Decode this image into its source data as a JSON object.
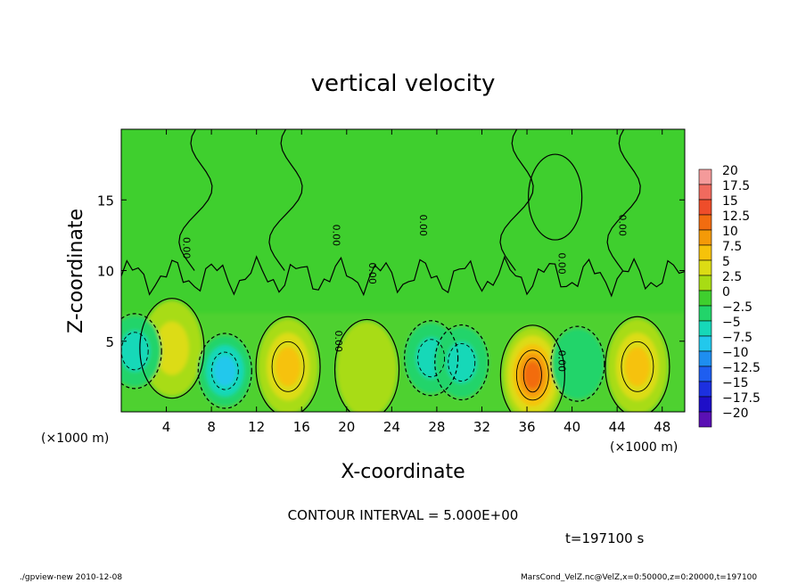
{
  "chart_data": {
    "type": "heatmap",
    "title": "vertical velocity",
    "xlabel": "X-coordinate",
    "ylabel": "Z-coordinate",
    "x_unit_left": "(×1000 m)",
    "x_unit_right": "(×1000 m)",
    "xlim": [
      0,
      50
    ],
    "ylim": [
      0,
      20
    ],
    "x_ticks": [
      4,
      8,
      12,
      16,
      20,
      24,
      28,
      32,
      36,
      40,
      44,
      48
    ],
    "y_ticks": [
      5,
      10,
      15
    ],
    "contour_interval_text": "CONTOUR INTERVAL = 5.000E+00",
    "time_text": "t=197100 s",
    "colorbar": {
      "levels": [
        20,
        17.5,
        15,
        12.5,
        10,
        7.5,
        5,
        2.5,
        0,
        -2.5,
        -5,
        -7.5,
        -10,
        -12.5,
        -15,
        -17.5,
        -20
      ],
      "colors": [
        "#f49a9a",
        "#f06a5e",
        "#ee4d2a",
        "#f26c10",
        "#f49a08",
        "#f6c20a",
        "#dcdc14",
        "#a8dc14",
        "#3fcf2e",
        "#22d46a",
        "#16d8b8",
        "#22c8ec",
        "#1e8ef0",
        "#1e5ef0",
        "#1c30e0",
        "#1e0ec8",
        "#5a10b4"
      ]
    },
    "features": [
      {
        "kind": "updraft",
        "x": 14.8,
        "z": 3.2,
        "peak": 7.5
      },
      {
        "kind": "updraft",
        "x": 36.5,
        "z": 2.6,
        "peak": 12.5
      },
      {
        "kind": "updraft",
        "x": 45.8,
        "z": 3.2,
        "peak": 8
      },
      {
        "kind": "updraft",
        "x": 4.5,
        "z": 4.5,
        "peak": 4
      },
      {
        "kind": "updraft",
        "x": 21.8,
        "z": 3.0,
        "peak": 3
      },
      {
        "kind": "downdraft",
        "x": 9.2,
        "z": 2.9,
        "peak": -7
      },
      {
        "kind": "downdraft",
        "x": 1.2,
        "z": 4.3,
        "peak": -5
      },
      {
        "kind": "downdraft",
        "x": 27.5,
        "z": 3.8,
        "peak": -5.5
      },
      {
        "kind": "downdraft",
        "x": 30.2,
        "z": 3.5,
        "peak": -5.5
      },
      {
        "kind": "downdraft",
        "x": 40.5,
        "z": 3.4,
        "peak": -2.5
      }
    ],
    "contour_labels": [
      "0.00",
      "0.00",
      "0.00",
      "0.00",
      "0.00",
      "0.00",
      "0.00",
      "0.00"
    ]
  },
  "footer": {
    "left": "./gpview-new  2010-12-08",
    "right": "MarsCond_VelZ.nc@VelZ,x=0:50000,z=0:20000,t=197100"
  }
}
